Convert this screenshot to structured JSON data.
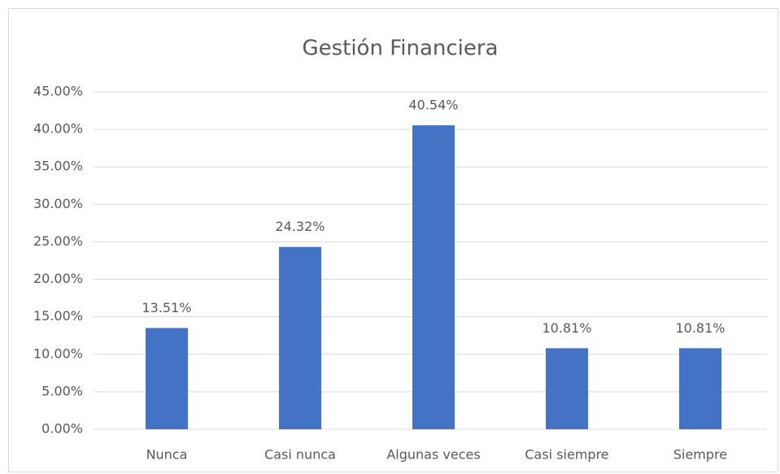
{
  "chart_data": {
    "type": "bar",
    "title": "Gestión Financiera",
    "categories": [
      "Nunca",
      "Casi nunca",
      "Algunas veces",
      "Casi siempre",
      "Siempre"
    ],
    "values": [
      13.51,
      24.32,
      40.54,
      10.81,
      10.81
    ],
    "value_labels": [
      "13.51%",
      "24.32%",
      "40.54%",
      "10.81%",
      "10.81%"
    ],
    "color": "#4472c4",
    "ylim": [
      0,
      45
    ],
    "yticks": [
      {
        "value": 0,
        "label": "0.00%"
      },
      {
        "value": 5,
        "label": "5.00%"
      },
      {
        "value": 10,
        "label": "10.00%"
      },
      {
        "value": 15,
        "label": "15.00%"
      },
      {
        "value": 20,
        "label": "20.00%"
      },
      {
        "value": 25,
        "label": "25.00%"
      },
      {
        "value": 30,
        "label": "30.00%"
      },
      {
        "value": 35,
        "label": "35.00%"
      },
      {
        "value": 40,
        "label": "40.00%"
      },
      {
        "value": 45,
        "label": "45.00%"
      }
    ],
    "grid": true
  }
}
